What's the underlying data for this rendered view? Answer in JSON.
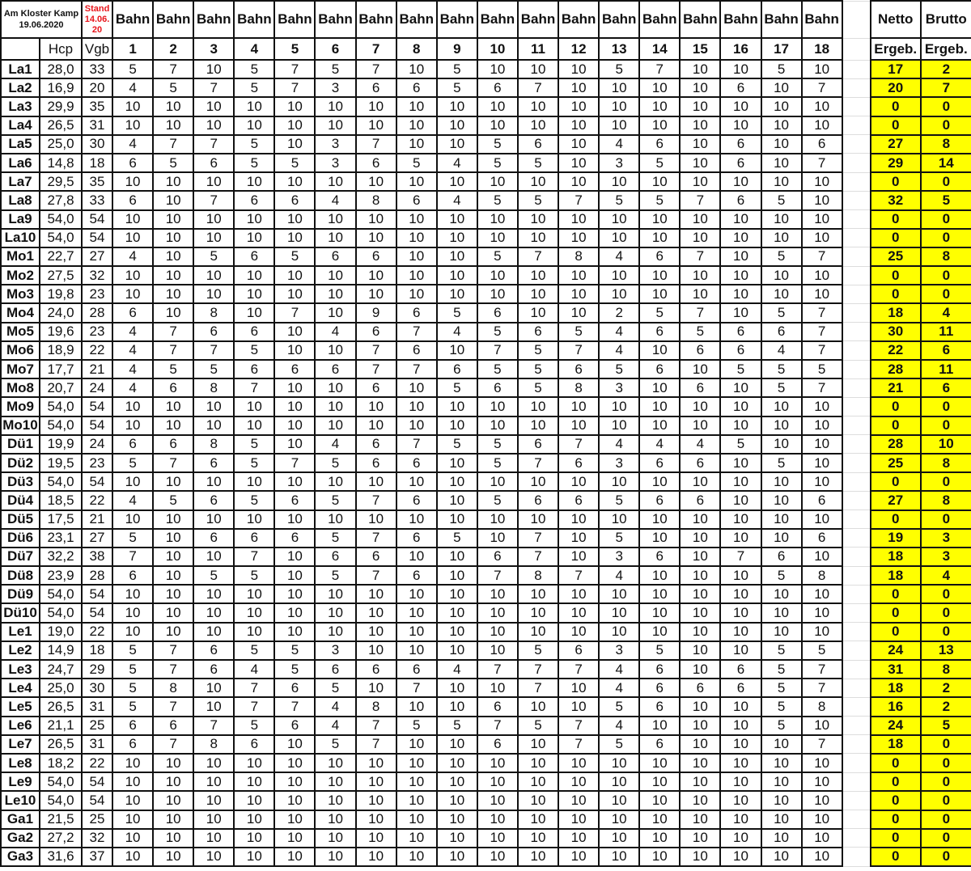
{
  "header": {
    "club": "Am Kloster Kamp",
    "date": "19.06.2020",
    "stand_label": "Stand",
    "stand_date_1": "14.06.",
    "stand_date_2": "20",
    "hole_label": "Bahn",
    "hcp_label": "Hcp",
    "vgb_label": "Vgb",
    "holes": [
      "1",
      "2",
      "3",
      "4",
      "5",
      "6",
      "7",
      "8",
      "9",
      "10",
      "11",
      "12",
      "13",
      "14",
      "15",
      "16",
      "17",
      "18"
    ],
    "netto_label": "Netto",
    "brutto_label": "Brutto",
    "result_label": "Ergeb."
  },
  "colors": {
    "result_highlight": "#ffff00",
    "stand_text": "#e8151b"
  },
  "rows": [
    {
      "name": "La1",
      "hcp": "28,0",
      "vgb": "33",
      "scores": [
        5,
        7,
        10,
        5,
        7,
        5,
        7,
        10,
        5,
        10,
        10,
        10,
        5,
        7,
        10,
        10,
        5,
        10
      ],
      "netto": "17",
      "brutto": "2"
    },
    {
      "name": "La2",
      "hcp": "16,9",
      "vgb": "20",
      "scores": [
        4,
        5,
        7,
        5,
        7,
        3,
        6,
        6,
        5,
        6,
        7,
        10,
        10,
        10,
        10,
        6,
        10,
        7
      ],
      "netto": "20",
      "brutto": "7"
    },
    {
      "name": "La3",
      "hcp": "29,9",
      "vgb": "35",
      "scores": [
        10,
        10,
        10,
        10,
        10,
        10,
        10,
        10,
        10,
        10,
        10,
        10,
        10,
        10,
        10,
        10,
        10,
        10
      ],
      "netto": "0",
      "brutto": "0"
    },
    {
      "name": "La4",
      "hcp": "26,5",
      "vgb": "31",
      "scores": [
        10,
        10,
        10,
        10,
        10,
        10,
        10,
        10,
        10,
        10,
        10,
        10,
        10,
        10,
        10,
        10,
        10,
        10
      ],
      "netto": "0",
      "brutto": "0"
    },
    {
      "name": "La5",
      "hcp": "25,0",
      "vgb": "30",
      "scores": [
        4,
        7,
        7,
        5,
        10,
        3,
        7,
        10,
        10,
        5,
        6,
        10,
        4,
        6,
        10,
        6,
        10,
        6
      ],
      "netto": "27",
      "brutto": "8"
    },
    {
      "name": "La6",
      "hcp": "14,8",
      "vgb": "18",
      "scores": [
        6,
        5,
        6,
        5,
        5,
        3,
        6,
        5,
        4,
        5,
        5,
        10,
        3,
        5,
        10,
        6,
        10,
        7
      ],
      "netto": "29",
      "brutto": "14"
    },
    {
      "name": "La7",
      "hcp": "29,5",
      "vgb": "35",
      "scores": [
        10,
        10,
        10,
        10,
        10,
        10,
        10,
        10,
        10,
        10,
        10,
        10,
        10,
        10,
        10,
        10,
        10,
        10
      ],
      "netto": "0",
      "brutto": "0"
    },
    {
      "name": "La8",
      "hcp": "27,8",
      "vgb": "33",
      "scores": [
        6,
        10,
        7,
        6,
        6,
        4,
        8,
        6,
        4,
        5,
        5,
        7,
        5,
        5,
        7,
        6,
        5,
        10
      ],
      "netto": "32",
      "brutto": "5"
    },
    {
      "name": "La9",
      "hcp": "54,0",
      "vgb": "54",
      "scores": [
        10,
        10,
        10,
        10,
        10,
        10,
        10,
        10,
        10,
        10,
        10,
        10,
        10,
        10,
        10,
        10,
        10,
        10
      ],
      "netto": "0",
      "brutto": "0"
    },
    {
      "name": "La10",
      "hcp": "54,0",
      "vgb": "54",
      "scores": [
        10,
        10,
        10,
        10,
        10,
        10,
        10,
        10,
        10,
        10,
        10,
        10,
        10,
        10,
        10,
        10,
        10,
        10
      ],
      "netto": "0",
      "brutto": "0"
    },
    {
      "name": "Mo1",
      "hcp": "22,7",
      "vgb": "27",
      "scores": [
        4,
        10,
        5,
        6,
        5,
        6,
        6,
        10,
        10,
        5,
        7,
        8,
        4,
        6,
        7,
        10,
        5,
        7
      ],
      "netto": "25",
      "brutto": "8"
    },
    {
      "name": "Mo2",
      "hcp": "27,5",
      "vgb": "32",
      "scores": [
        10,
        10,
        10,
        10,
        10,
        10,
        10,
        10,
        10,
        10,
        10,
        10,
        10,
        10,
        10,
        10,
        10,
        10
      ],
      "netto": "0",
      "brutto": "0"
    },
    {
      "name": "Mo3",
      "hcp": "19,8",
      "vgb": "23",
      "scores": [
        10,
        10,
        10,
        10,
        10,
        10,
        10,
        10,
        10,
        10,
        10,
        10,
        10,
        10,
        10,
        10,
        10,
        10
      ],
      "netto": "0",
      "brutto": "0"
    },
    {
      "name": "Mo4",
      "hcp": "24,0",
      "vgb": "28",
      "scores": [
        6,
        10,
        8,
        10,
        7,
        10,
        9,
        6,
        5,
        6,
        10,
        10,
        2,
        5,
        7,
        10,
        5,
        7
      ],
      "netto": "18",
      "brutto": "4"
    },
    {
      "name": "Mo5",
      "hcp": "19,6",
      "vgb": "23",
      "scores": [
        4,
        7,
        6,
        6,
        10,
        4,
        6,
        7,
        4,
        5,
        6,
        5,
        4,
        6,
        5,
        6,
        6,
        7
      ],
      "netto": "30",
      "brutto": "11"
    },
    {
      "name": "Mo6",
      "hcp": "18,9",
      "vgb": "22",
      "scores": [
        4,
        7,
        7,
        5,
        10,
        10,
        7,
        6,
        10,
        7,
        5,
        7,
        4,
        10,
        6,
        6,
        4,
        7
      ],
      "netto": "22",
      "brutto": "6"
    },
    {
      "name": "Mo7",
      "hcp": "17,7",
      "vgb": "21",
      "scores": [
        4,
        5,
        5,
        6,
        6,
        6,
        7,
        7,
        6,
        5,
        5,
        6,
        5,
        6,
        10,
        5,
        5,
        5
      ],
      "netto": "28",
      "brutto": "11"
    },
    {
      "name": "Mo8",
      "hcp": "20,7",
      "vgb": "24",
      "scores": [
        4,
        6,
        8,
        7,
        10,
        10,
        6,
        10,
        5,
        6,
        5,
        8,
        3,
        10,
        6,
        10,
        5,
        7
      ],
      "netto": "21",
      "brutto": "6"
    },
    {
      "name": "Mo9",
      "hcp": "54,0",
      "vgb": "54",
      "scores": [
        10,
        10,
        10,
        10,
        10,
        10,
        10,
        10,
        10,
        10,
        10,
        10,
        10,
        10,
        10,
        10,
        10,
        10
      ],
      "netto": "0",
      "brutto": "0"
    },
    {
      "name": "Mo10",
      "hcp": "54,0",
      "vgb": "54",
      "scores": [
        10,
        10,
        10,
        10,
        10,
        10,
        10,
        10,
        10,
        10,
        10,
        10,
        10,
        10,
        10,
        10,
        10,
        10
      ],
      "netto": "0",
      "brutto": "0"
    },
    {
      "name": "Dü1",
      "hcp": "19,9",
      "vgb": "24",
      "scores": [
        6,
        6,
        8,
        5,
        10,
        4,
        6,
        7,
        5,
        5,
        6,
        7,
        4,
        4,
        4,
        5,
        10,
        10
      ],
      "netto": "28",
      "brutto": "10"
    },
    {
      "name": "Dü2",
      "hcp": "19,5",
      "vgb": "23",
      "scores": [
        5,
        7,
        6,
        5,
        7,
        5,
        6,
        6,
        10,
        5,
        7,
        6,
        3,
        6,
        6,
        10,
        5,
        10
      ],
      "netto": "25",
      "brutto": "8"
    },
    {
      "name": "Dü3",
      "hcp": "54,0",
      "vgb": "54",
      "scores": [
        10,
        10,
        10,
        10,
        10,
        10,
        10,
        10,
        10,
        10,
        10,
        10,
        10,
        10,
        10,
        10,
        10,
        10
      ],
      "netto": "0",
      "brutto": "0"
    },
    {
      "name": "Dü4",
      "hcp": "18,5",
      "vgb": "22",
      "scores": [
        4,
        5,
        6,
        5,
        6,
        5,
        7,
        6,
        10,
        5,
        6,
        6,
        5,
        6,
        6,
        10,
        10,
        6
      ],
      "netto": "27",
      "brutto": "8"
    },
    {
      "name": "Dü5",
      "hcp": "17,5",
      "vgb": "21",
      "scores": [
        10,
        10,
        10,
        10,
        10,
        10,
        10,
        10,
        10,
        10,
        10,
        10,
        10,
        10,
        10,
        10,
        10,
        10
      ],
      "netto": "0",
      "brutto": "0"
    },
    {
      "name": "Dü6",
      "hcp": "23,1",
      "vgb": "27",
      "scores": [
        5,
        10,
        6,
        6,
        6,
        5,
        7,
        6,
        5,
        10,
        7,
        10,
        5,
        10,
        10,
        10,
        10,
        6
      ],
      "netto": "19",
      "brutto": "3"
    },
    {
      "name": "Dü7",
      "hcp": "32,2",
      "vgb": "38",
      "scores": [
        7,
        10,
        10,
        7,
        10,
        6,
        6,
        10,
        10,
        6,
        7,
        10,
        3,
        6,
        10,
        7,
        6,
        10
      ],
      "netto": "18",
      "brutto": "3"
    },
    {
      "name": "Dü8",
      "hcp": "23,9",
      "vgb": "28",
      "scores": [
        6,
        10,
        5,
        5,
        10,
        5,
        7,
        6,
        10,
        7,
        8,
        7,
        4,
        10,
        10,
        10,
        5,
        8
      ],
      "netto": "18",
      "brutto": "4"
    },
    {
      "name": "Dü9",
      "hcp": "54,0",
      "vgb": "54",
      "scores": [
        10,
        10,
        10,
        10,
        10,
        10,
        10,
        10,
        10,
        10,
        10,
        10,
        10,
        10,
        10,
        10,
        10,
        10
      ],
      "netto": "0",
      "brutto": "0"
    },
    {
      "name": "Dü10",
      "hcp": "54,0",
      "vgb": "54",
      "scores": [
        10,
        10,
        10,
        10,
        10,
        10,
        10,
        10,
        10,
        10,
        10,
        10,
        10,
        10,
        10,
        10,
        10,
        10
      ],
      "netto": "0",
      "brutto": "0"
    },
    {
      "name": "Le1",
      "hcp": "19,0",
      "vgb": "22",
      "scores": [
        10,
        10,
        10,
        10,
        10,
        10,
        10,
        10,
        10,
        10,
        10,
        10,
        10,
        10,
        10,
        10,
        10,
        10
      ],
      "netto": "0",
      "brutto": "0"
    },
    {
      "name": "Le2",
      "hcp": "14,9",
      "vgb": "18",
      "scores": [
        5,
        7,
        6,
        5,
        5,
        3,
        10,
        10,
        10,
        10,
        5,
        6,
        3,
        5,
        10,
        10,
        5,
        5
      ],
      "netto": "24",
      "brutto": "13"
    },
    {
      "name": "Le3",
      "hcp": "24,7",
      "vgb": "29",
      "scores": [
        5,
        7,
        6,
        4,
        5,
        6,
        6,
        6,
        4,
        7,
        7,
        7,
        4,
        6,
        10,
        6,
        5,
        7
      ],
      "netto": "31",
      "brutto": "8"
    },
    {
      "name": "Le4",
      "hcp": "25,0",
      "vgb": "30",
      "scores": [
        5,
        8,
        10,
        7,
        6,
        5,
        10,
        7,
        10,
        10,
        7,
        10,
        4,
        6,
        6,
        6,
        5,
        7
      ],
      "netto": "18",
      "brutto": "2"
    },
    {
      "name": "Le5",
      "hcp": "26,5",
      "vgb": "31",
      "scores": [
        5,
        7,
        10,
        7,
        7,
        4,
        8,
        10,
        10,
        6,
        10,
        10,
        5,
        6,
        10,
        10,
        5,
        8
      ],
      "netto": "16",
      "brutto": "2"
    },
    {
      "name": "Le6",
      "hcp": "21,1",
      "vgb": "25",
      "scores": [
        6,
        6,
        7,
        5,
        6,
        4,
        7,
        5,
        5,
        7,
        5,
        7,
        4,
        10,
        10,
        10,
        5,
        10
      ],
      "netto": "24",
      "brutto": "5"
    },
    {
      "name": "Le7",
      "hcp": "26,5",
      "vgb": "31",
      "scores": [
        6,
        7,
        8,
        6,
        10,
        5,
        7,
        10,
        10,
        6,
        10,
        7,
        5,
        6,
        10,
        10,
        10,
        7
      ],
      "netto": "18",
      "brutto": "0"
    },
    {
      "name": "Le8",
      "hcp": "18,2",
      "vgb": "22",
      "scores": [
        10,
        10,
        10,
        10,
        10,
        10,
        10,
        10,
        10,
        10,
        10,
        10,
        10,
        10,
        10,
        10,
        10,
        10
      ],
      "netto": "0",
      "brutto": "0"
    },
    {
      "name": "Le9",
      "hcp": "54,0",
      "vgb": "54",
      "scores": [
        10,
        10,
        10,
        10,
        10,
        10,
        10,
        10,
        10,
        10,
        10,
        10,
        10,
        10,
        10,
        10,
        10,
        10
      ],
      "netto": "0",
      "brutto": "0"
    },
    {
      "name": "Le10",
      "hcp": "54,0",
      "vgb": "54",
      "scores": [
        10,
        10,
        10,
        10,
        10,
        10,
        10,
        10,
        10,
        10,
        10,
        10,
        10,
        10,
        10,
        10,
        10,
        10
      ],
      "netto": "0",
      "brutto": "0"
    },
    {
      "name": "Ga1",
      "hcp": "21,5",
      "vgb": "25",
      "scores": [
        10,
        10,
        10,
        10,
        10,
        10,
        10,
        10,
        10,
        10,
        10,
        10,
        10,
        10,
        10,
        10,
        10,
        10
      ],
      "netto": "0",
      "brutto": "0"
    },
    {
      "name": "Ga2",
      "hcp": "27,2",
      "vgb": "32",
      "scores": [
        10,
        10,
        10,
        10,
        10,
        10,
        10,
        10,
        10,
        10,
        10,
        10,
        10,
        10,
        10,
        10,
        10,
        10
      ],
      "netto": "0",
      "brutto": "0"
    },
    {
      "name": "Ga3",
      "hcp": "31,6",
      "vgb": "37",
      "scores": [
        10,
        10,
        10,
        10,
        10,
        10,
        10,
        10,
        10,
        10,
        10,
        10,
        10,
        10,
        10,
        10,
        10,
        10
      ],
      "netto": "0",
      "brutto": "0"
    }
  ]
}
